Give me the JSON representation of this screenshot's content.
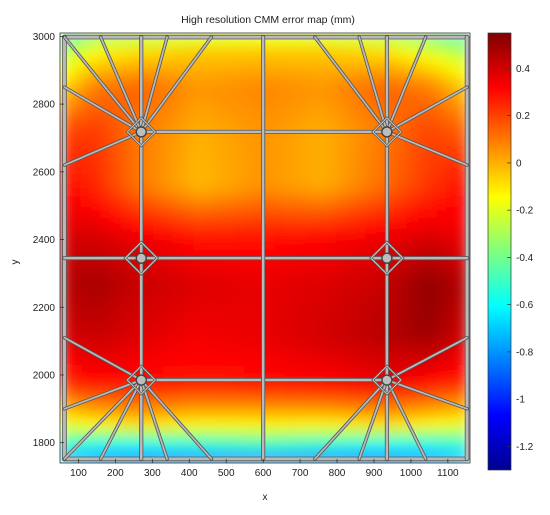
{
  "chart_data": {
    "type": "heatmap",
    "title": "High resolution CMM error map (mm)",
    "xlabel": "x",
    "ylabel": "y",
    "xlim": [
      50,
      1160
    ],
    "ylim": [
      1740,
      3010
    ],
    "xticks": [
      100,
      200,
      300,
      400,
      500,
      600,
      700,
      800,
      900,
      1000,
      1100
    ],
    "yticks": [
      1800,
      2000,
      2200,
      2400,
      2600,
      2800,
      3000
    ],
    "colorbar": {
      "range": [
        -1.3,
        0.55
      ],
      "ticks": [
        0.4,
        0.2,
        0,
        -0.2,
        -0.4,
        -0.6,
        -0.8,
        -1,
        -1.2
      ],
      "colormap": "jet"
    },
    "grid_x": [
      65,
      145,
      265,
      425,
      600,
      765,
      930,
      1050,
      1150
    ],
    "grid_y": [
      1750,
      1800,
      1860,
      1980,
      2120,
      2270,
      2400,
      2560,
      2720,
      2850,
      2960,
      3000
    ],
    "error_values": [
      [
        -0.75,
        -0.85,
        -0.9,
        -0.9,
        -0.88,
        -0.9,
        -0.9,
        -0.85,
        -0.75
      ],
      [
        -0.5,
        -0.55,
        -0.55,
        -0.5,
        -0.45,
        -0.5,
        -0.55,
        -0.55,
        -0.5
      ],
      [
        -0.15,
        -0.1,
        -0.05,
        -0.1,
        -0.1,
        -0.1,
        -0.05,
        -0.1,
        -0.15
      ],
      [
        0.25,
        0.3,
        0.3,
        0.28,
        0.3,
        0.32,
        0.35,
        0.3,
        0.25
      ],
      [
        0.4,
        0.42,
        0.38,
        0.34,
        0.36,
        0.4,
        0.45,
        0.5,
        0.4
      ],
      [
        0.45,
        0.48,
        0.42,
        0.38,
        0.36,
        0.38,
        0.42,
        0.52,
        0.45
      ],
      [
        0.4,
        0.4,
        0.36,
        0.3,
        0.3,
        0.32,
        0.36,
        0.4,
        0.35
      ],
      [
        0.3,
        0.25,
        0.1,
        -0.02,
        0.05,
        0.0,
        0.12,
        0.22,
        0.3
      ],
      [
        0.2,
        0.22,
        0.1,
        0.0,
        0.05,
        0.0,
        0.1,
        0.2,
        0.15
      ],
      [
        -0.05,
        0.1,
        0.15,
        0.05,
        0.08,
        0.05,
        0.15,
        0.1,
        -0.05
      ],
      [
        -0.3,
        -0.15,
        -0.1,
        -0.05,
        -0.05,
        -0.05,
        -0.1,
        -0.2,
        -0.3
      ],
      [
        -0.5,
        -0.35,
        -0.3,
        -0.25,
        -0.22,
        -0.25,
        -0.3,
        -0.4,
        -0.5
      ]
    ]
  }
}
